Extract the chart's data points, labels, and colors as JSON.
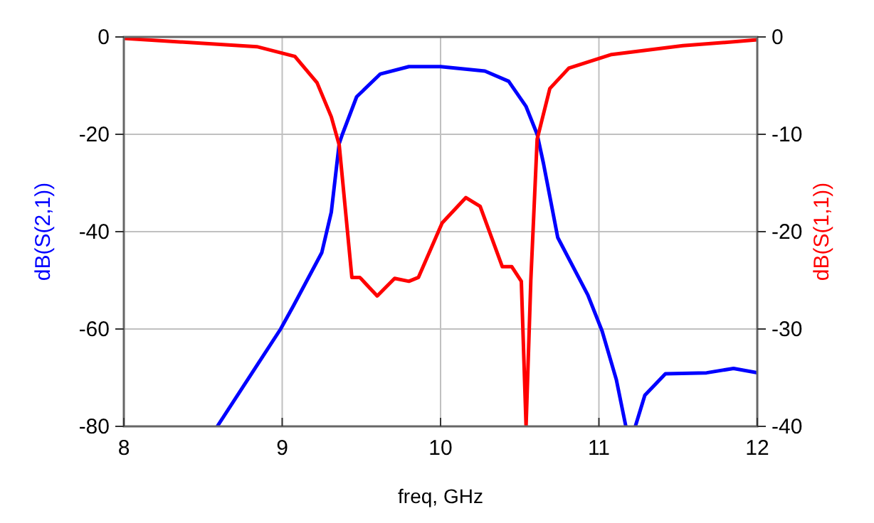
{
  "chart_data": {
    "type": "line",
    "xlabel": "freq, GHz",
    "ylabel": "dB(S(2,1))",
    "y2label": "dB(S(1,1))",
    "xlim": [
      8,
      12
    ],
    "xticks": [
      8,
      9,
      10,
      11,
      12
    ],
    "ylim": [
      -80,
      0
    ],
    "yticks": [
      0,
      -20,
      -40,
      -60,
      -80
    ],
    "y2lim": [
      -40,
      0
    ],
    "y2ticks": [
      0,
      -10,
      -20,
      -30,
      -40
    ],
    "grid": true,
    "marker": "none",
    "line_style": "solid",
    "series": [
      {
        "color": "#0000ff",
        "x": [
          8.59,
          8.99,
          9.07,
          9.25,
          9.31,
          9.36,
          9.38,
          9.47,
          9.62,
          9.8,
          10,
          10.28,
          10.43,
          10.54,
          10.61,
          10.65,
          10.74,
          10.93,
          11.02,
          11.11,
          11.17,
          11.2,
          11.23,
          11.29,
          11.42,
          11.68,
          11.85,
          12
        ],
        "values": [
          -80,
          -60,
          -55.3,
          -44.3,
          -36,
          -21.9,
          -20,
          -12.3,
          -7.6,
          -6.1,
          -6.1,
          -7,
          -9.1,
          -14.3,
          -20,
          -26,
          -41.2,
          -53,
          -60.4,
          -70.4,
          -80,
          null,
          -80,
          -73.6,
          -69.2,
          -69,
          -68.1,
          -69
        ]
      },
      {
        "color": "#ff0000",
        "axis": "y2",
        "x": [
          8,
          8.84,
          9.08,
          9.22,
          9.31,
          9.36,
          9.44,
          9.49,
          9.6,
          9.71,
          9.8,
          9.86,
          10.01,
          10.16,
          10.25,
          10.39,
          10.45,
          10.51,
          10.54,
          10.57,
          10.61,
          10.69,
          10.81,
          11.08,
          11.53,
          12
        ],
        "values": [
          -0.15,
          -1,
          -2,
          -4.7,
          -8.2,
          -11.1,
          -24.7,
          -24.7,
          -26.6,
          -24.8,
          -25.1,
          -24.7,
          -19.1,
          -16.5,
          -17.4,
          -23.6,
          -23.6,
          -25.1,
          -40,
          -25,
          -10.5,
          -5.3,
          -3.2,
          -1.8,
          -0.9,
          -0.3
        ]
      }
    ]
  }
}
